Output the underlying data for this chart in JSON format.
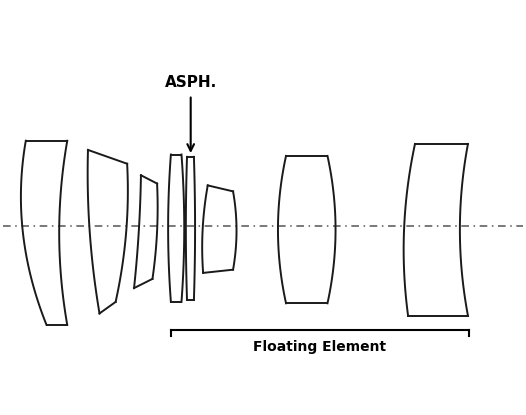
{
  "background_color": "#ffffff",
  "asph_label": "ASPH.",
  "floating_label": "Floating Element",
  "line_color": "#1a1a1a",
  "dash_color": "#555555",
  "xlim": [
    -5.5,
    5.8
  ],
  "ylim": [
    -2.8,
    3.6
  ]
}
